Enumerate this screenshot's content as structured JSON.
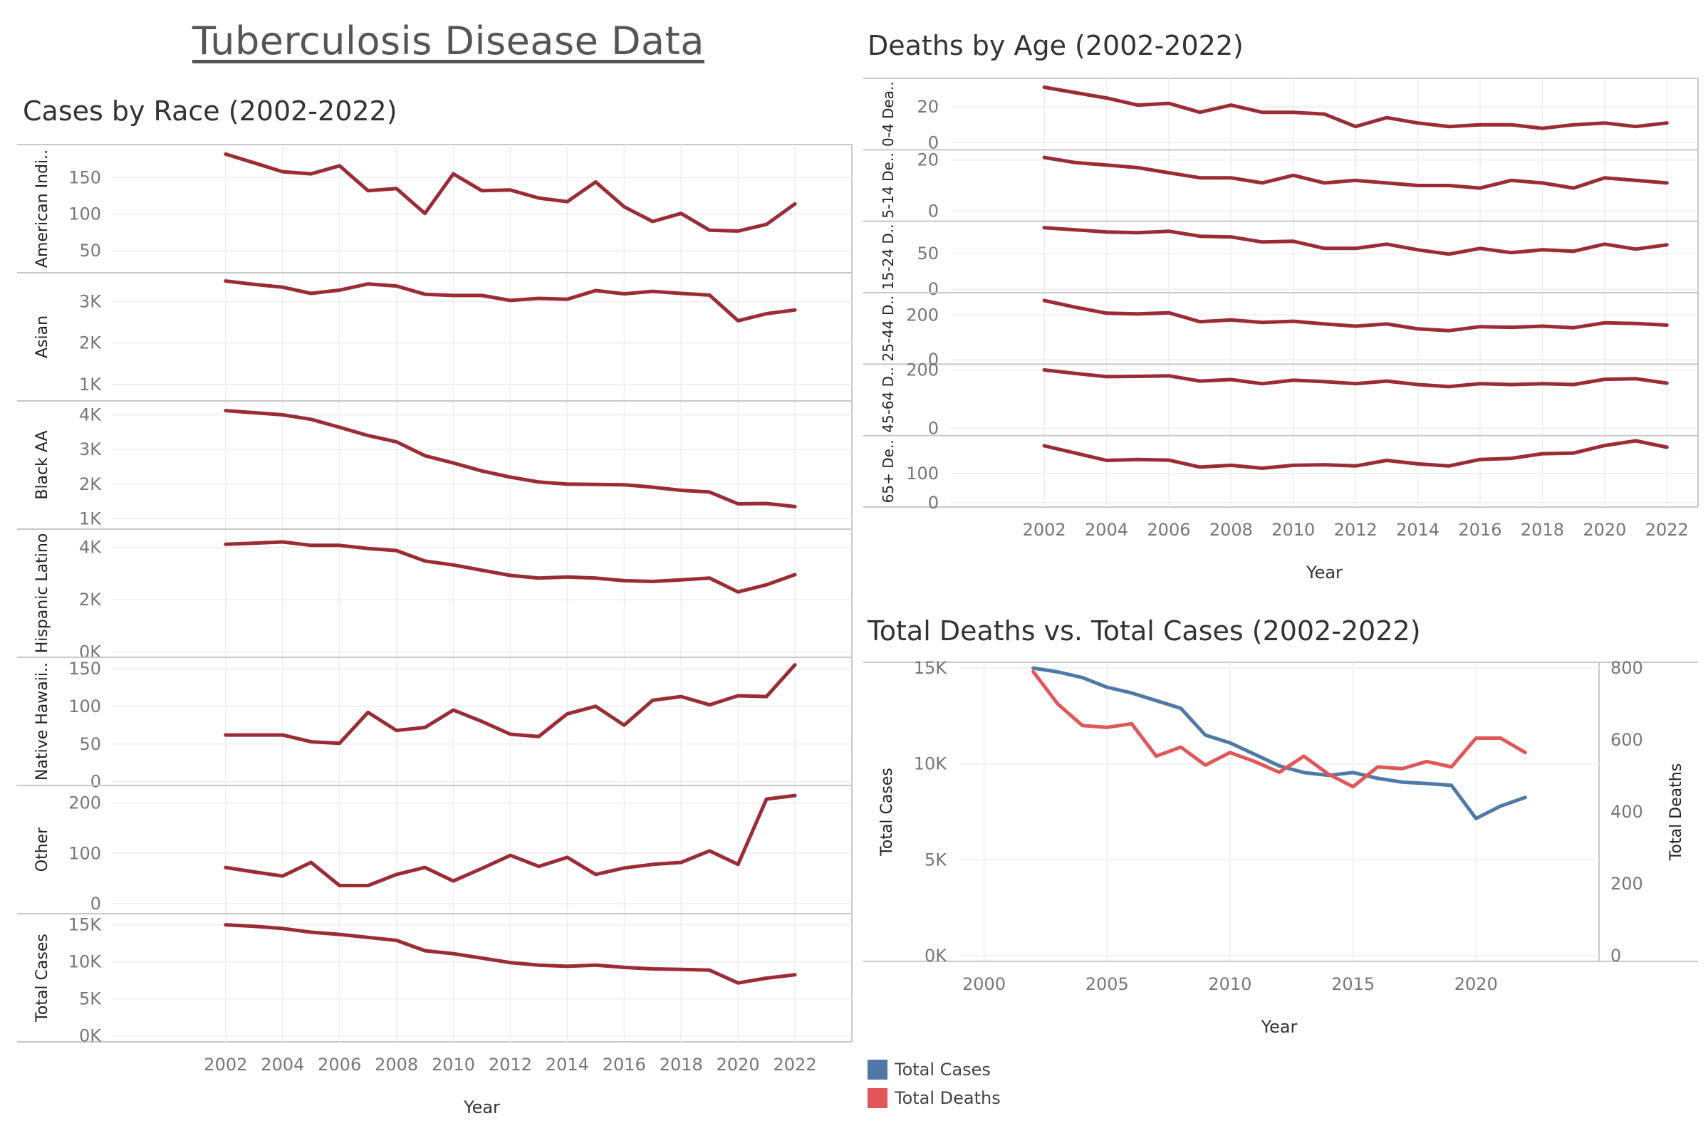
{
  "dashboard": {
    "title": "Tuberculosis Disease Data"
  },
  "colors": {
    "line": "#9B2B35",
    "cases": "#4E79A7",
    "deaths": "#E15759",
    "axis_text": "#777777",
    "border": "#c8c8c8",
    "grid": "#eeeeee"
  },
  "chart_data": [
    {
      "id": "race",
      "type": "line",
      "title": "Cases by Race (2002-2022)",
      "xlabel": "Year",
      "x_ticks": [
        2002,
        2004,
        2006,
        2008,
        2010,
        2012,
        2014,
        2016,
        2018,
        2020,
        2022
      ],
      "xlim": [
        1998,
        2024
      ],
      "x": [
        2002,
        2003,
        2004,
        2005,
        2006,
        2007,
        2008,
        2009,
        2010,
        2011,
        2012,
        2013,
        2014,
        2015,
        2016,
        2017,
        2018,
        2019,
        2020,
        2021,
        2022
      ],
      "panels": [
        {
          "ylabel": "American Indi..",
          "ylim": [
            20,
            195
          ],
          "ticks": [
            50,
            100,
            150
          ],
          "tick_labels": [
            "50",
            "100",
            "150"
          ],
          "values": [
            182,
            170,
            158,
            155,
            166,
            132,
            135,
            101,
            155,
            132,
            133,
            122,
            117,
            144,
            110,
            90,
            101,
            78,
            77,
            86,
            114
          ]
        },
        {
          "ylabel": "Asian",
          "ylim": [
            600,
            3700
          ],
          "ticks": [
            1000,
            2000,
            3000
          ],
          "tick_labels": [
            "1K",
            "2K",
            "3K"
          ],
          "values": [
            3500,
            3420,
            3350,
            3200,
            3280,
            3430,
            3380,
            3180,
            3150,
            3150,
            3030,
            3080,
            3060,
            3270,
            3190,
            3250,
            3200,
            3160,
            2540,
            2710,
            2800
          ]
        },
        {
          "ylabel": "Black AA",
          "ylim": [
            700,
            4400
          ],
          "ticks": [
            1000,
            2000,
            3000,
            4000
          ],
          "tick_labels": [
            "1K",
            "2K",
            "3K",
            "4K"
          ],
          "values": [
            4120,
            4060,
            4000,
            3870,
            3640,
            3400,
            3220,
            2820,
            2610,
            2380,
            2200,
            2060,
            2000,
            1990,
            1980,
            1910,
            1820,
            1770,
            1430,
            1440,
            1350
          ]
        },
        {
          "ylabel": "Hispanic Latino",
          "ylim": [
            -200,
            4700
          ],
          "ticks": [
            0,
            2000,
            4000
          ],
          "tick_labels": [
            "0K",
            "2K",
            "4K"
          ],
          "values": [
            4120,
            4160,
            4210,
            4080,
            4080,
            3960,
            3880,
            3480,
            3330,
            3130,
            2930,
            2830,
            2870,
            2830,
            2730,
            2700,
            2760,
            2830,
            2300,
            2570,
            2960
          ]
        },
        {
          "ylabel": "Native Hawaii..",
          "ylim": [
            -5,
            165
          ],
          "ticks": [
            0,
            50,
            100,
            150
          ],
          "tick_labels": [
            "0",
            "50",
            "100",
            "150"
          ],
          "values": [
            62,
            62,
            62,
            53,
            51,
            92,
            68,
            72,
            95,
            80,
            63,
            60,
            90,
            100,
            75,
            108,
            113,
            102,
            114,
            113,
            155
          ]
        },
        {
          "ylabel": "Other",
          "ylim": [
            -20,
            235
          ],
          "ticks": [
            0,
            100,
            200
          ],
          "tick_labels": [
            "0",
            "100",
            "200"
          ],
          "values": [
            72,
            63,
            55,
            82,
            36,
            36,
            58,
            72,
            45,
            70,
            96,
            74,
            92,
            58,
            71,
            78,
            82,
            105,
            78,
            208,
            215
          ]
        },
        {
          "ylabel": "Total Cases",
          "ylim": [
            -800,
            16500
          ],
          "ticks": [
            0,
            5000,
            10000,
            15000
          ],
          "tick_labels": [
            "0K",
            "5K",
            "10K",
            "15K"
          ],
          "values": [
            15000,
            14800,
            14500,
            14000,
            13700,
            13300,
            12900,
            11500,
            11100,
            10500,
            9900,
            9550,
            9400,
            9550,
            9250,
            9050,
            8980,
            8880,
            7150,
            7800,
            8250
          ]
        }
      ]
    },
    {
      "id": "age",
      "type": "line",
      "title": "Deaths by Age (2002-2022)",
      "xlabel": "Year",
      "x_ticks": [
        2002,
        2004,
        2006,
        2008,
        2010,
        2012,
        2014,
        2016,
        2018,
        2020,
        2022
      ],
      "xlim": [
        1999,
        2023
      ],
      "x": [
        2002,
        2003,
        2004,
        2005,
        2006,
        2007,
        2008,
        2009,
        2010,
        2011,
        2012,
        2013,
        2014,
        2015,
        2016,
        2017,
        2018,
        2019,
        2020,
        2021,
        2022
      ],
      "panels": [
        {
          "ylabel": "0-4 Dea..",
          "ylim": [
            -4,
            36
          ],
          "ticks": [
            0,
            20
          ],
          "tick_labels": [
            "0",
            "20"
          ],
          "values": [
            31,
            28,
            25,
            21,
            22,
            17,
            21,
            17,
            17,
            16,
            9,
            14,
            11,
            9,
            10,
            10,
            8,
            10,
            11,
            9,
            11
          ]
        },
        {
          "ylabel": "5-14 De..",
          "ylim": [
            -4,
            24
          ],
          "ticks": [
            0,
            20
          ],
          "tick_labels": [
            "0",
            "20"
          ],
          "values": [
            21,
            19,
            18,
            17,
            15,
            13,
            13,
            11,
            14,
            11,
            12,
            11,
            10,
            10,
            9,
            12,
            11,
            9,
            13,
            12,
            11
          ]
        },
        {
          "ylabel": "15-24 D..",
          "ylim": [
            -5,
            95
          ],
          "ticks": [
            0,
            50
          ],
          "tick_labels": [
            "0",
            "50"
          ],
          "values": [
            86,
            83,
            80,
            79,
            81,
            74,
            73,
            66,
            67,
            57,
            57,
            63,
            55,
            49,
            57,
            51,
            55,
            53,
            63,
            56,
            62
          ]
        },
        {
          "ylabel": "25-44 D..",
          "ylim": [
            -20,
            300
          ],
          "ticks": [
            0,
            200
          ],
          "tick_labels": [
            "0",
            "200"
          ],
          "values": [
            265,
            235,
            208,
            205,
            210,
            170,
            178,
            167,
            172,
            160,
            150,
            160,
            138,
            130,
            148,
            145,
            150,
            143,
            165,
            162,
            155
          ]
        },
        {
          "ylabel": "45-64 D..",
          "ylim": [
            -25,
            220
          ],
          "ticks": [
            0,
            200
          ],
          "tick_labels": [
            "0",
            "200"
          ],
          "values": [
            200,
            188,
            177,
            178,
            180,
            162,
            167,
            153,
            165,
            160,
            153,
            162,
            150,
            143,
            153,
            150,
            153,
            150,
            168,
            170,
            155
          ]
        },
        {
          "ylabel": "65+ De..",
          "ylim": [
            -15,
            230
          ],
          "ticks": [
            0,
            100
          ],
          "tick_labels": [
            "0",
            "100"
          ],
          "values": [
            195,
            170,
            145,
            148,
            146,
            122,
            128,
            118,
            128,
            130,
            126,
            145,
            133,
            126,
            148,
            152,
            168,
            170,
            196,
            212,
            190
          ]
        }
      ]
    },
    {
      "id": "dual",
      "type": "line",
      "title": "Total Deaths vs. Total Cases (2002-2022)",
      "xlabel": "Year",
      "x_ticks": [
        2000,
        2005,
        2010,
        2015,
        2020
      ],
      "xlim": [
        1999,
        2025
      ],
      "x": [
        2002,
        2003,
        2004,
        2005,
        2006,
        2007,
        2008,
        2009,
        2010,
        2011,
        2012,
        2013,
        2014,
        2015,
        2016,
        2017,
        2018,
        2019,
        2020,
        2021,
        2022
      ],
      "left_axis": {
        "label": "Total Cases",
        "ylim": [
          -300,
          15300
        ],
        "ticks": [
          0,
          5000,
          10000,
          15000
        ],
        "tick_labels": [
          "0K",
          "5K",
          "10K",
          "15K"
        ]
      },
      "right_axis": {
        "label": "Total Deaths",
        "ylim": [
          -16,
          816
        ],
        "ticks": [
          0,
          200,
          400,
          600,
          800
        ],
        "tick_labels": [
          "0",
          "200",
          "400",
          "600",
          "800"
        ]
      },
      "series": [
        {
          "name": "Total Cases",
          "axis": "left",
          "color": "#4E79A7",
          "values": [
            15000,
            14800,
            14500,
            14000,
            13700,
            13300,
            12900,
            11500,
            11100,
            10500,
            9900,
            9550,
            9400,
            9550,
            9250,
            9050,
            8980,
            8880,
            7150,
            7800,
            8250
          ]
        },
        {
          "name": "Total Deaths",
          "axis": "right",
          "color": "#E15759",
          "values": [
            790,
            700,
            640,
            635,
            645,
            555,
            580,
            530,
            565,
            540,
            510,
            555,
            505,
            470,
            525,
            520,
            540,
            525,
            605,
            605,
            565
          ]
        }
      ]
    }
  ]
}
